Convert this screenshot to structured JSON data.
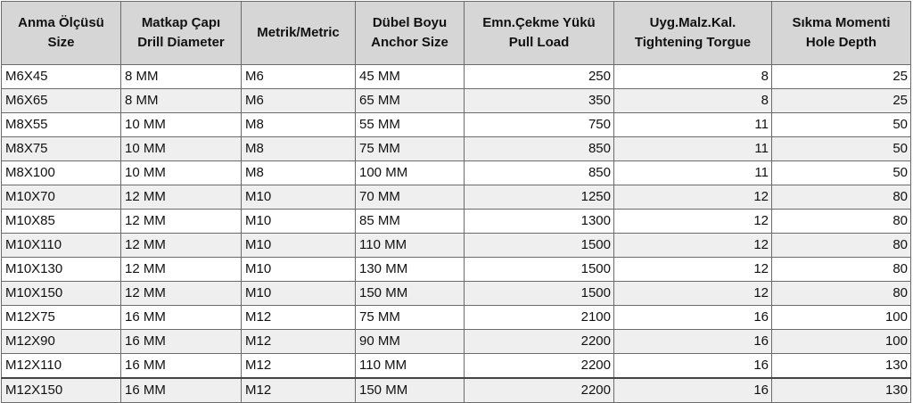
{
  "headers": [
    {
      "line1": "Anma Ölçüsü",
      "line2": "Size"
    },
    {
      "line1": "Matkap Çapı",
      "line2": "Drill Diameter"
    },
    {
      "line1": "Metrik/Metric",
      "line2": ""
    },
    {
      "line1": "Dübel Boyu",
      "line2": "Anchor Size"
    },
    {
      "line1": "Emn.Çekme Yükü",
      "line2": "Pull Load"
    },
    {
      "line1": "Uyg.Malz.Kal.",
      "line2": "Tightening Torgue"
    },
    {
      "line1": "Sıkma Momenti",
      "line2": "Hole Depth"
    }
  ],
  "rows": [
    [
      "M6X45",
      "8 MM",
      "M6",
      "45 MM",
      "250",
      "8",
      "25"
    ],
    [
      "M6X65",
      "8 MM",
      "M6",
      "65 MM",
      "350",
      "8",
      "25"
    ],
    [
      "M8X55",
      "10 MM",
      "M8",
      "55 MM",
      "750",
      "11",
      "50"
    ],
    [
      "M8X75",
      "10 MM",
      "M8",
      "75 MM",
      "850",
      "11",
      "50"
    ],
    [
      "M8X100",
      "10 MM",
      "M8",
      "100 MM",
      "850",
      "11",
      "50"
    ],
    [
      "M10X70",
      "12 MM",
      "M10",
      "70 MM",
      "1250",
      "12",
      "80"
    ],
    [
      "M10X85",
      "12 MM",
      "M10",
      "85 MM",
      "1300",
      "12",
      "80"
    ],
    [
      "M10X110",
      "12 MM",
      "M10",
      "110 MM",
      "1500",
      "12",
      "80"
    ],
    [
      "M10X130",
      "12 MM",
      "M10",
      "130 MM",
      "1500",
      "12",
      "80"
    ],
    [
      "M10X150",
      "12 MM",
      "M10",
      "150 MM",
      "1500",
      "12",
      "80"
    ],
    [
      "M12X75",
      "16 MM",
      "M12",
      "75 MM",
      "2100",
      "16",
      "100"
    ],
    [
      "M12X90",
      "16 MM",
      "M12",
      "90 MM",
      "2200",
      "16",
      "100"
    ],
    [
      "M12X110",
      "16 MM",
      "M12",
      "110 MM",
      "2200",
      "16",
      "130"
    ],
    [
      "M12X150",
      "16 MM",
      "M12",
      "150 MM",
      "2200",
      "16",
      "130"
    ]
  ]
}
